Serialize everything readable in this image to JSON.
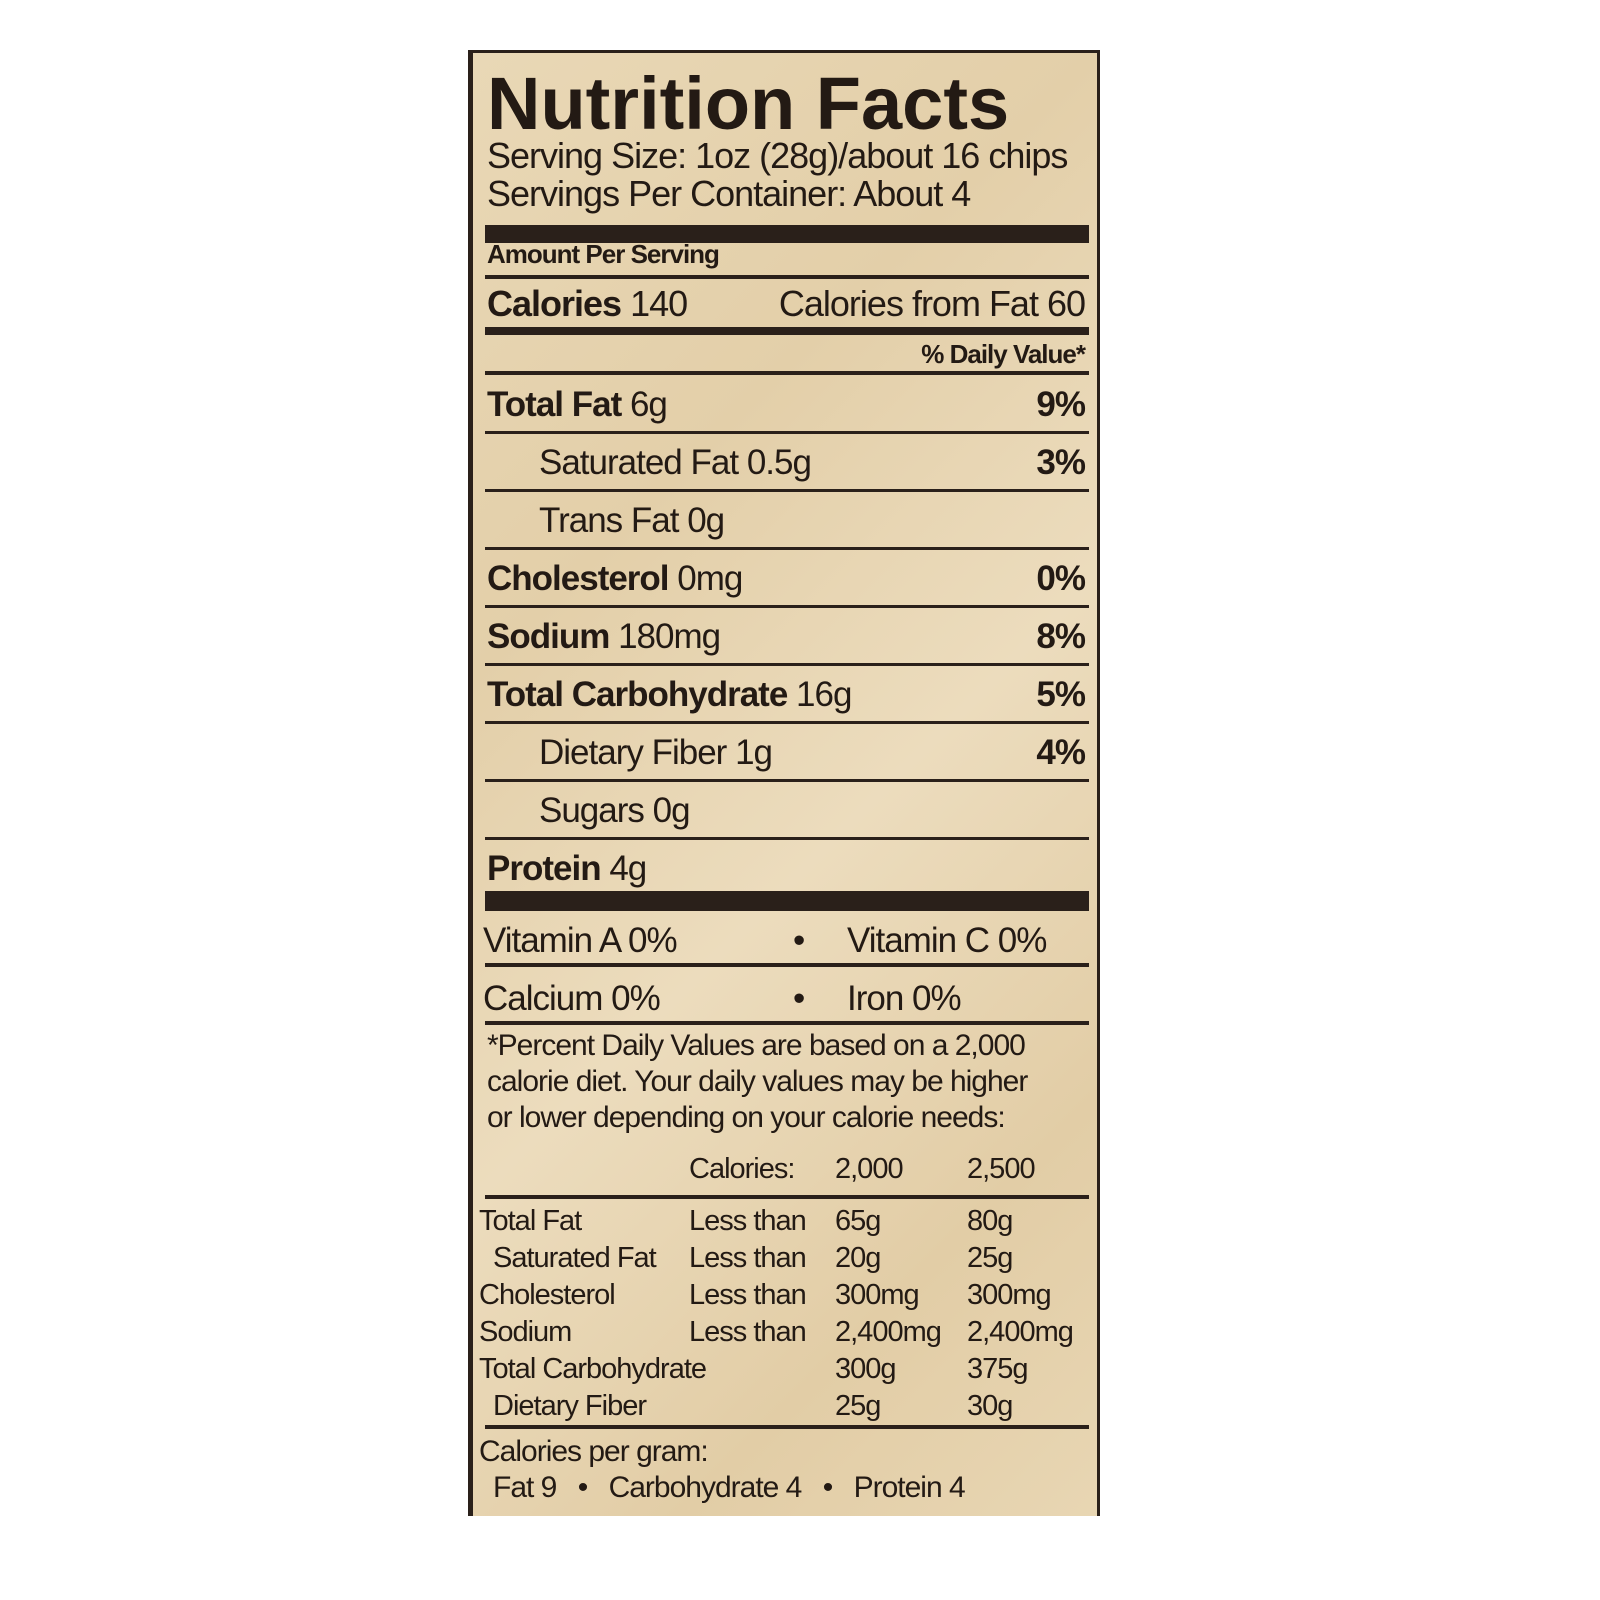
{
  "label": {
    "title": "Nutrition Facts",
    "serving_size": "Serving Size: 1oz (28g)/about 16 chips",
    "servings_per_container": "Servings Per Container: About 4",
    "amount_per_serving": "Amount Per Serving",
    "calories_label": "Calories",
    "calories_value": "140",
    "calories_from_fat": "Calories from Fat 60",
    "daily_value_header": "% Daily Value*",
    "nutrients": [
      {
        "name": "Total Fat",
        "amount": "6g",
        "dv": "9%"
      },
      {
        "name": "Saturated Fat",
        "amount": "0.5g",
        "dv": "3%"
      },
      {
        "name": "Trans Fat",
        "amount": "0g",
        "dv": ""
      },
      {
        "name": "Cholesterol",
        "amount": "0mg",
        "dv": "0%"
      },
      {
        "name": "Sodium",
        "amount": "180mg",
        "dv": "8%"
      },
      {
        "name": "Total Carbohydrate",
        "amount": "16g",
        "dv": "5%"
      },
      {
        "name": "Dietary Fiber",
        "amount": "1g",
        "dv": "4%"
      },
      {
        "name": "Sugars",
        "amount": "0g",
        "dv": ""
      },
      {
        "name": "Protein",
        "amount": "4g",
        "dv": ""
      }
    ],
    "vitamins": [
      {
        "left": "Vitamin A 0%",
        "right": "Vitamin C 0%"
      },
      {
        "left": "Calcium 0%",
        "right": "Iron 0%"
      }
    ],
    "bullet": "•",
    "footnote": [
      "*Percent Daily Values are based on a 2,000",
      "calorie diet. Your daily values may be higher",
      "or lower depending on your calorie needs:"
    ],
    "reference_table": {
      "header": [
        "",
        "Calories:",
        "2,000",
        "2,500"
      ],
      "rows": [
        [
          "Total Fat",
          "Less than",
          "65g",
          "80g"
        ],
        [
          "Saturated Fat",
          "Less than",
          "20g",
          "25g"
        ],
        [
          "Cholesterol",
          "Less than",
          "300mg",
          "300mg"
        ],
        [
          "Sodium",
          "Less than",
          "2,400mg",
          "2,400mg"
        ],
        [
          "Total Carbohydrate",
          "",
          "300g",
          "375g"
        ],
        [
          "Dietary Fiber",
          "",
          "25g",
          "30g"
        ]
      ]
    },
    "calories_per_gram": {
      "heading": "Calories per gram:",
      "items": [
        "Fat 9",
        "Carbohydrate 4",
        "Protein 4"
      ]
    },
    "colors": {
      "ink": "#231a14",
      "paper": "#e6d3b0"
    }
  }
}
